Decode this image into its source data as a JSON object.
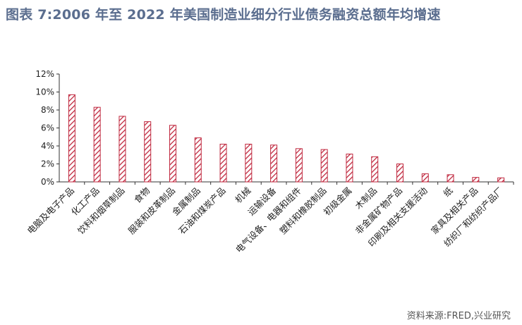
{
  "title": "图表 7:2006 年至 2022 年美国制造业细分行业债务融资总额年均增速",
  "source": "资料来源:FRED,兴业研究",
  "colors": {
    "title": "#5b6e8f",
    "bar": "#c0293f",
    "axis": "#333333"
  },
  "chart_data": {
    "type": "bar",
    "title": "图表 7:2006 年至 2022 年美国制造业细分行业债务融资总额年均增速",
    "xlabel": "",
    "ylabel": "",
    "ylim": [
      0,
      12
    ],
    "yticks": [
      "0%",
      "2%",
      "4%",
      "6%",
      "8%",
      "10%",
      "12%"
    ],
    "grid": false,
    "legend": "none",
    "bar_pattern": "diagonal-hatch",
    "categories": [
      "电脑及电子产品",
      "化工产品",
      "饮料和烟草制品",
      "食物",
      "服装和皮革制品",
      "金属制品",
      "石油和煤炭产品",
      "机械",
      "运输设备",
      "电气设备、电器和组件",
      "塑料和橡胶制品",
      "初级金属",
      "木制品",
      "非金属矿物产品",
      "印刷及相关支援活动",
      "纸",
      "家具及相关产品",
      "纺织厂和纺织产品厂"
    ],
    "values": [
      9.7,
      8.3,
      7.3,
      6.7,
      6.3,
      4.9,
      4.2,
      4.2,
      4.1,
      3.7,
      3.6,
      3.1,
      2.8,
      2.0,
      0.9,
      0.8,
      0.5,
      0.45
    ]
  }
}
